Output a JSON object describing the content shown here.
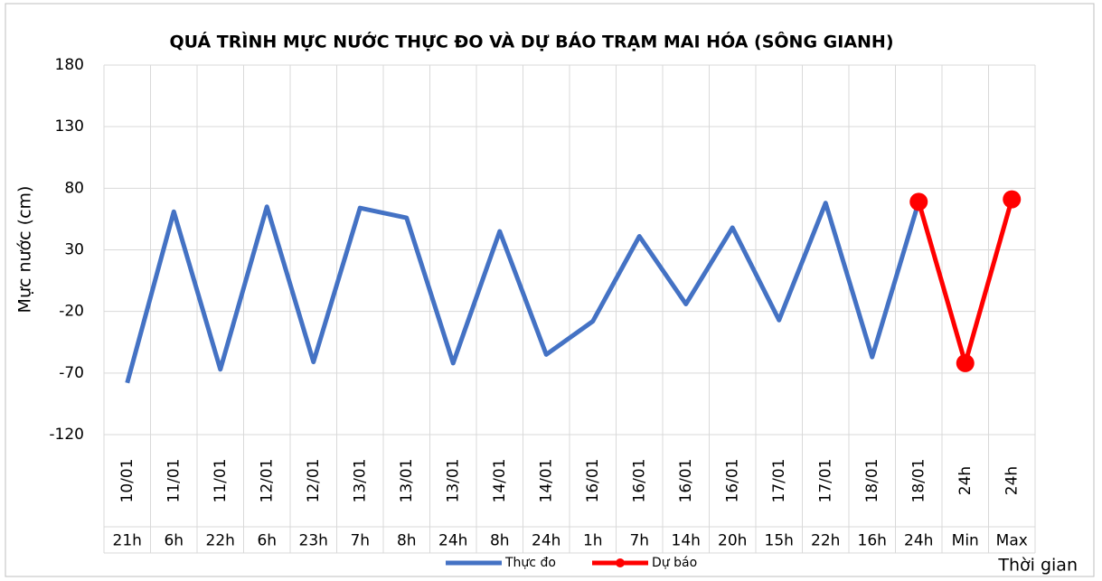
{
  "chart_data": {
    "type": "line",
    "title": "QUÁ TRÌNH MỰC NƯỚC THỰC ĐO VÀ DỰ BÁO TRẠM MAI HÓA (SÔNG GIANH)",
    "y_label": "Mực nước (cm)",
    "x_label": "Thời gian",
    "categories": [
      [
        "10/01",
        "21h"
      ],
      [
        "11/01",
        "6h"
      ],
      [
        "11/01",
        "22h"
      ],
      [
        "12/01",
        "6h"
      ],
      [
        "12/01",
        "23h"
      ],
      [
        "13/01",
        "7h"
      ],
      [
        "13/01",
        "8h"
      ],
      [
        "13/01",
        "24h"
      ],
      [
        "14/01",
        "8h"
      ],
      [
        "14/01",
        "24h"
      ],
      [
        "16/01",
        "1h"
      ],
      [
        "16/01",
        "7h"
      ],
      [
        "16/01",
        "14h"
      ],
      [
        "16/01",
        "20h"
      ],
      [
        "17/01",
        "15h"
      ],
      [
        "17/01",
        "22h"
      ],
      [
        "18/01",
        "16h"
      ],
      [
        "18/01",
        "24h"
      ],
      [
        "24h",
        "Min"
      ],
      [
        "24h",
        "Max"
      ]
    ],
    "series": [
      {
        "name": "Thực đo",
        "color": "#4472c4",
        "markers": false,
        "values": [
          -78,
          61,
          -67,
          65,
          -61,
          64,
          56,
          -62,
          45,
          -55,
          -28,
          41,
          -14,
          48,
          -27,
          68,
          -57,
          69,
          null,
          null
        ]
      },
      {
        "name": "Dự báo",
        "color": "#ff0000",
        "markers": true,
        "values": [
          null,
          null,
          null,
          null,
          null,
          null,
          null,
          null,
          null,
          null,
          null,
          null,
          null,
          null,
          null,
          null,
          null,
          69,
          -62,
          71
        ]
      }
    ],
    "ylim": [
      -120,
      180
    ],
    "yticks": [
      -120,
      -70,
      -20,
      30,
      80,
      130,
      180
    ],
    "grid": true,
    "legend": "bottom"
  }
}
